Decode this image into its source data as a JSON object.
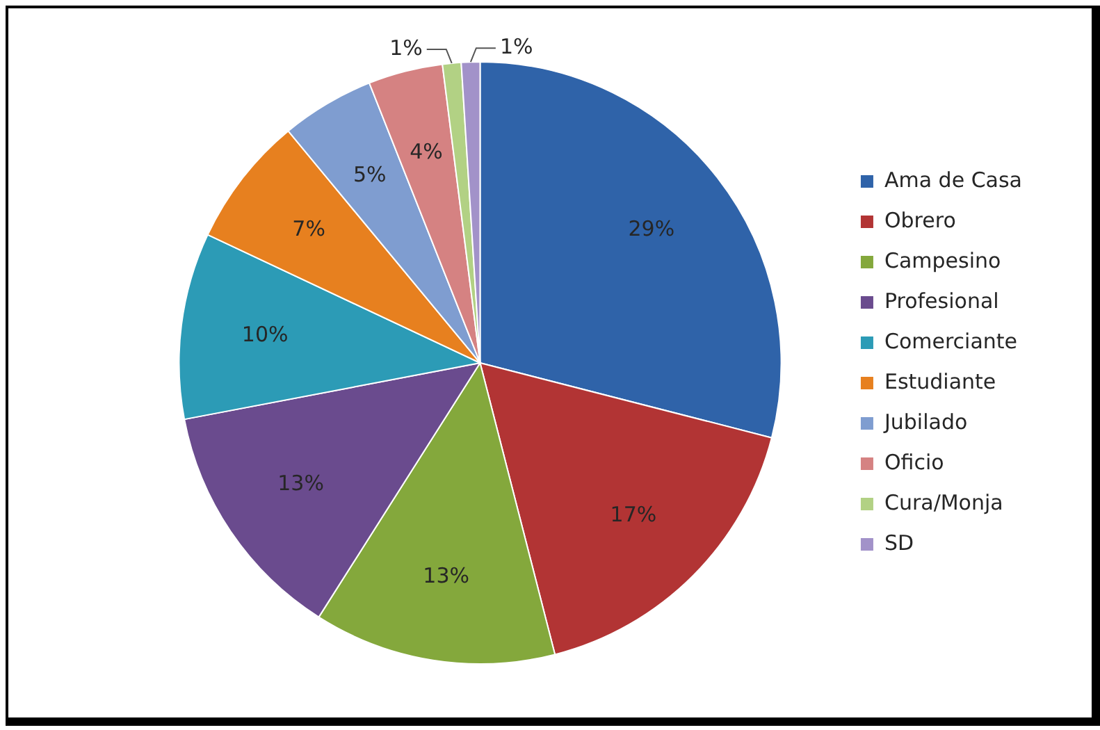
{
  "chart_data": {
    "type": "pie",
    "categories": [
      "Ama de Casa",
      "Obrero",
      "Campesino",
      "Profesional",
      "Comerciante",
      "Estudiante",
      "Jubilado",
      "Oficio",
      "Cura/Monja",
      "SD"
    ],
    "values": [
      29,
      17,
      13,
      13,
      10,
      7,
      5,
      4,
      1,
      1
    ],
    "colors": [
      "#2f63a9",
      "#b23434",
      "#84a83c",
      "#6a4b8e",
      "#2c9bb6",
      "#e7801f",
      "#7f9dd0",
      "#d58282",
      "#b2d184",
      "#a292c9"
    ],
    "value_labels": [
      "29%",
      "17%",
      "13%",
      "13%",
      "10%",
      "7%",
      "5%",
      "4%",
      "1%",
      "1%"
    ],
    "legend": "right"
  }
}
